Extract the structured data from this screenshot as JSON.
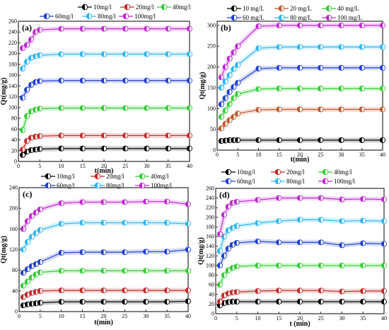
{
  "chart_data": [
    {
      "type": "line",
      "panel_label": "(a)",
      "xlabel": "t(min)",
      "ylabel": "Qt(mg/g)",
      "xlim": [
        0,
        40
      ],
      "ylim": [
        0,
        260
      ],
      "xticks": [
        0,
        5,
        10,
        15,
        20,
        25,
        30,
        35,
        40
      ],
      "yticks": [
        0,
        20,
        40,
        60,
        80,
        100,
        120,
        140,
        160,
        180,
        200,
        220,
        240,
        260
      ],
      "legend_position": "top",
      "x": [
        1,
        2,
        3,
        4,
        5,
        10,
        15,
        20,
        25,
        30,
        35,
        40
      ],
      "series": [
        {
          "name": "10mg/l",
          "color": "#000000",
          "values": [
            12,
            18,
            21,
            22,
            23,
            24,
            24,
            24,
            24,
            24,
            24,
            24
          ]
        },
        {
          "name": "20mg/l",
          "color": "#c62828",
          "values": [
            22,
            38,
            44,
            46,
            47,
            48,
            48,
            48,
            48,
            48,
            48,
            48
          ]
        },
        {
          "name": "40mg/l",
          "color": "#32cd32",
          "values": [
            58,
            84,
            93,
            96,
            98,
            99,
            99,
            99,
            99,
            99,
            99,
            99
          ]
        },
        {
          "name": "60mg/l",
          "color": "#1f3fd0",
          "values": [
            118,
            133,
            142,
            147,
            149,
            150,
            150,
            150,
            150,
            150,
            150,
            150
          ]
        },
        {
          "name": "80mg/l",
          "color": "#29b6f6",
          "values": [
            172,
            185,
            192,
            195,
            197,
            199,
            199,
            199,
            199,
            199,
            199,
            199
          ]
        },
        {
          "name": "100mg/l",
          "color": "#c026d3",
          "values": [
            210,
            216,
            226,
            240,
            244,
            246,
            246,
            246,
            246,
            246,
            246,
            246
          ]
        }
      ]
    },
    {
      "type": "line",
      "panel_label": "(b)",
      "xlabel": "t(min)",
      "ylabel": "Qt(mg/g)",
      "xlim": [
        0,
        40
      ],
      "ylim": [
        0,
        310
      ],
      "xticks": [
        0,
        5,
        10,
        15,
        20,
        25,
        30,
        35,
        40
      ],
      "yticks": [
        0,
        50,
        100,
        150,
        200,
        250,
        300
      ],
      "legend_position": "top",
      "x": [
        1,
        2,
        3,
        4,
        5,
        10,
        15,
        20,
        25,
        30,
        35,
        40
      ],
      "series": [
        {
          "name": "10 mg/L",
          "color": "#000000",
          "values": [
            22,
            23,
            24,
            24,
            24,
            24,
            24,
            24,
            24,
            24,
            24,
            24
          ]
        },
        {
          "name": "20 mg/L",
          "color": "#c0562a",
          "values": [
            52,
            63,
            72,
            80,
            88,
            97,
            98,
            98,
            98,
            98,
            98,
            98
          ]
        },
        {
          "name": "40 mg/L",
          "color": "#32cd32",
          "values": [
            80,
            95,
            110,
            125,
            135,
            147,
            148,
            148,
            148,
            148,
            148,
            148
          ]
        },
        {
          "name": "60 mg/L",
          "color": "#1f3fd0",
          "values": [
            110,
            125,
            140,
            152,
            162,
            196,
            198,
            198,
            198,
            198,
            198,
            198
          ]
        },
        {
          "name": "80 mg/L",
          "color": "#29b6f6",
          "values": [
            150,
            165,
            180,
            195,
            205,
            245,
            248,
            248,
            248,
            248,
            248,
            248
          ]
        },
        {
          "name": "100 mg/L",
          "color": "#c026d3",
          "values": [
            175,
            200,
            220,
            235,
            250,
            298,
            300,
            300,
            300,
            300,
            300,
            300
          ]
        }
      ]
    },
    {
      "type": "line",
      "panel_label": "(c)",
      "xlabel": "t(min)",
      "ylabel": "Qt(mg/g)",
      "xlim": [
        0,
        40
      ],
      "ylim": [
        0,
        240
      ],
      "xticks": [
        0,
        5,
        10,
        15,
        20,
        25,
        30,
        35,
        40
      ],
      "yticks": [
        0,
        40,
        80,
        120,
        160,
        200,
        240
      ],
      "legend_position": "top",
      "x": [
        1,
        2,
        3,
        4,
        5,
        10,
        15,
        20,
        25,
        30,
        35,
        40
      ],
      "series": [
        {
          "name": "10mg/l",
          "color": "#000000",
          "values": [
            12,
            14,
            15,
            16,
            17,
            19,
            19,
            19,
            19,
            19,
            19,
            20
          ]
        },
        {
          "name": "20mg/l",
          "color": "#c62828",
          "values": [
            28,
            33,
            36,
            38,
            40,
            41,
            41,
            41,
            41,
            41,
            41,
            41
          ]
        },
        {
          "name": "40mg/l",
          "color": "#32cd32",
          "values": [
            50,
            58,
            66,
            72,
            76,
            79,
            79,
            79,
            79,
            79,
            79,
            79
          ]
        },
        {
          "name": "60mg/l",
          "color": "#1f3fd0",
          "values": [
            75,
            82,
            88,
            92,
            96,
            114,
            115,
            115,
            115,
            116,
            116,
            120
          ]
        },
        {
          "name": "80mg/l",
          "color": "#29b6f6",
          "values": [
            120,
            135,
            145,
            152,
            158,
            170,
            172,
            172,
            172,
            172,
            172,
            170
          ]
        },
        {
          "name": "100mg/l",
          "color": "#c026d3",
          "values": [
            160,
            175,
            185,
            192,
            198,
            210,
            212,
            212,
            212,
            213,
            213,
            208
          ]
        }
      ]
    },
    {
      "type": "line",
      "panel_label": "(d)",
      "xlabel": "t (min)",
      "ylabel": "Qt(mg/g)",
      "xlim": [
        0,
        40
      ],
      "ylim": [
        0,
        260
      ],
      "xticks": [
        0,
        5,
        10,
        15,
        20,
        25,
        30,
        35,
        40
      ],
      "yticks": [
        0,
        20,
        40,
        60,
        80,
        100,
        120,
        140,
        160,
        180,
        200,
        220,
        240,
        260
      ],
      "legend_position": "top",
      "x": [
        1,
        2,
        3,
        4,
        5,
        10,
        15,
        20,
        25,
        30,
        35,
        40
      ],
      "series": [
        {
          "name": "10mg/l",
          "color": "#000000",
          "values": [
            17,
            22,
            24,
            25,
            25,
            25,
            25,
            25,
            25,
            25,
            25,
            25
          ]
        },
        {
          "name": "20mg/l",
          "color": "#c62828",
          "values": [
            25,
            38,
            42,
            44,
            45,
            47,
            48,
            48,
            48,
            46,
            47,
            47
          ]
        },
        {
          "name": "40mg/l",
          "color": "#32cd32",
          "values": [
            60,
            80,
            90,
            95,
            98,
            100,
            100,
            100,
            100,
            100,
            100,
            100
          ]
        },
        {
          "name": "60mg/l",
          "color": "#1f3fd0",
          "values": [
            100,
            120,
            135,
            143,
            147,
            150,
            148,
            148,
            148,
            142,
            146,
            145
          ]
        },
        {
          "name": "80mg/l",
          "color": "#29b6f6",
          "values": [
            130,
            160,
            173,
            178,
            182,
            188,
            192,
            195,
            195,
            192,
            193,
            192
          ]
        },
        {
          "name": "100mg/l",
          "color": "#c026d3",
          "values": [
            165,
            205,
            222,
            230,
            232,
            236,
            240,
            240,
            240,
            237,
            238,
            237
          ]
        }
      ]
    }
  ]
}
